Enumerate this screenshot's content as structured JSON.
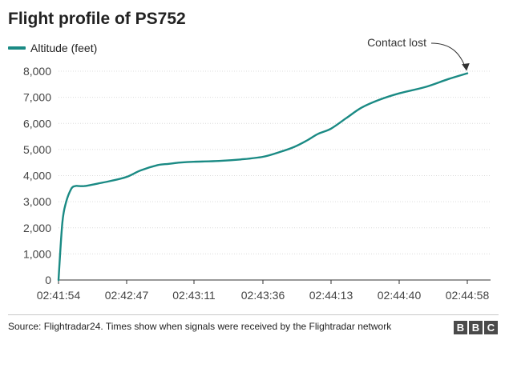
{
  "chart_data": {
    "type": "line",
    "title": "Flight profile of PS752",
    "series": [
      {
        "name": "Altitude (feet)",
        "color": "#1a8a84",
        "x": [
          "02:41:54",
          "02:41:57",
          "02:42:00",
          "02:42:04",
          "02:42:07",
          "02:42:10",
          "02:42:14",
          "02:42:20",
          "02:42:25",
          "02:42:35",
          "02:42:47",
          "02:42:52",
          "02:42:58",
          "02:43:02",
          "02:43:06",
          "02:43:11",
          "02:43:20",
          "02:43:28",
          "02:43:36",
          "02:43:45",
          "02:43:53",
          "02:44:00",
          "02:44:06",
          "02:44:13",
          "02:44:19",
          "02:44:25",
          "02:44:32",
          "02:44:40",
          "02:44:47",
          "02:44:53",
          "02:44:58"
        ],
        "values": [
          0,
          2200,
          3000,
          3500,
          3600,
          3600,
          3600,
          3650,
          3700,
          3800,
          3950,
          4200,
          4400,
          4450,
          4500,
          4530,
          4560,
          4620,
          4720,
          4900,
          5100,
          5350,
          5600,
          5800,
          6200,
          6600,
          6900,
          7150,
          7400,
          7700,
          7920
        ]
      }
    ],
    "x_ticks": [
      "02:41:54",
      "02:42:47",
      "02:43:11",
      "02:43:36",
      "02:44:13",
      "02:44:40",
      "02:44:58"
    ],
    "y_ticks": [
      "0",
      "1,000",
      "2,000",
      "3,000",
      "4,000",
      "5,000",
      "6,000",
      "7,000",
      "8,000"
    ],
    "y_tick_values": [
      0,
      1000,
      2000,
      3000,
      4000,
      5000,
      6000,
      7000,
      8000
    ],
    "ylim": [
      0,
      8000
    ],
    "xlabel": "",
    "ylabel": "",
    "grid": true,
    "legend_position": "top-left",
    "annotation": {
      "text": "Contact lost",
      "points_to": "last-point"
    }
  },
  "footer": {
    "source": "Source: Flightradar24. Times show when signals were received by the Flightradar network",
    "logo": [
      "B",
      "B",
      "C"
    ]
  }
}
